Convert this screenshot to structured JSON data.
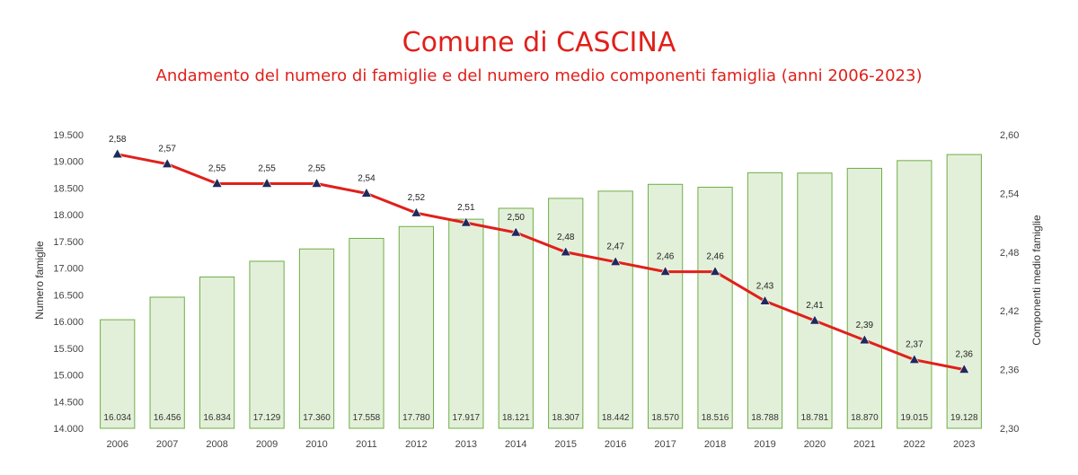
{
  "title": "Comune di CASCINA",
  "subtitle": "Andamento del numero di famiglie e del numero medio componenti famiglia (anni 2006-2023)",
  "chart_data": {
    "type": "bar",
    "categories": [
      "2006",
      "2007",
      "2008",
      "2009",
      "2010",
      "2011",
      "2012",
      "2013",
      "2014",
      "2015",
      "2016",
      "2017",
      "2018",
      "2019",
      "2020",
      "2021",
      "2022",
      "2023"
    ],
    "series": [
      {
        "name": "",
        "type": "bar",
        "axis": "left",
        "values": [
          16034,
          16456,
          16834,
          17129,
          17360,
          17558,
          17780,
          17917,
          18121,
          18307,
          18442,
          18570,
          18516,
          18788,
          18781,
          18870,
          19015,
          19128
        ],
        "labels": [
          "16.034",
          "16.456",
          "16.834",
          "17.129",
          "17.360",
          "17.558",
          "17.780",
          "17.917",
          "18.121",
          "18.307",
          "18.442",
          "18.570",
          "18.516",
          "18.788",
          "18.781",
          "18.870",
          "19.015",
          "19.128"
        ],
        "fill": "#e2f0d9",
        "stroke": "#70ad47"
      },
      {
        "name": "",
        "type": "line",
        "axis": "right",
        "values": [
          2.58,
          2.57,
          2.55,
          2.55,
          2.55,
          2.54,
          2.52,
          2.51,
          2.5,
          2.48,
          2.47,
          2.46,
          2.46,
          2.43,
          2.41,
          2.39,
          2.37,
          2.36
        ],
        "labels": [
          "2,58",
          "2,57",
          "2,55",
          "2,55",
          "2,55",
          "2,54",
          "2,52",
          "2,51",
          "2,50",
          "2,48",
          "2,47",
          "2,46",
          "2,46",
          "2,43",
          "2,41",
          "2,39",
          "2,37",
          "2,36"
        ],
        "color": "#e0201b",
        "marker": "triangle",
        "marker_color": "#1f2a5a"
      }
    ],
    "y_left": {
      "label": "Numero famiglie",
      "ylim": [
        14000,
        19500
      ],
      "ticks": [
        "14.000",
        "14.500",
        "15.000",
        "15.500",
        "16.000",
        "16.500",
        "17.000",
        "17.500",
        "18.000",
        "18.500",
        "19.000",
        "19.500"
      ]
    },
    "y_right": {
      "label": "Componenti medio famiglie",
      "ylim": [
        2.3,
        2.6
      ],
      "ticks": [
        "2,30",
        "2,36",
        "2,42",
        "2,48",
        "2,54",
        "2,60"
      ]
    },
    "grid": false,
    "legend": "none"
  }
}
